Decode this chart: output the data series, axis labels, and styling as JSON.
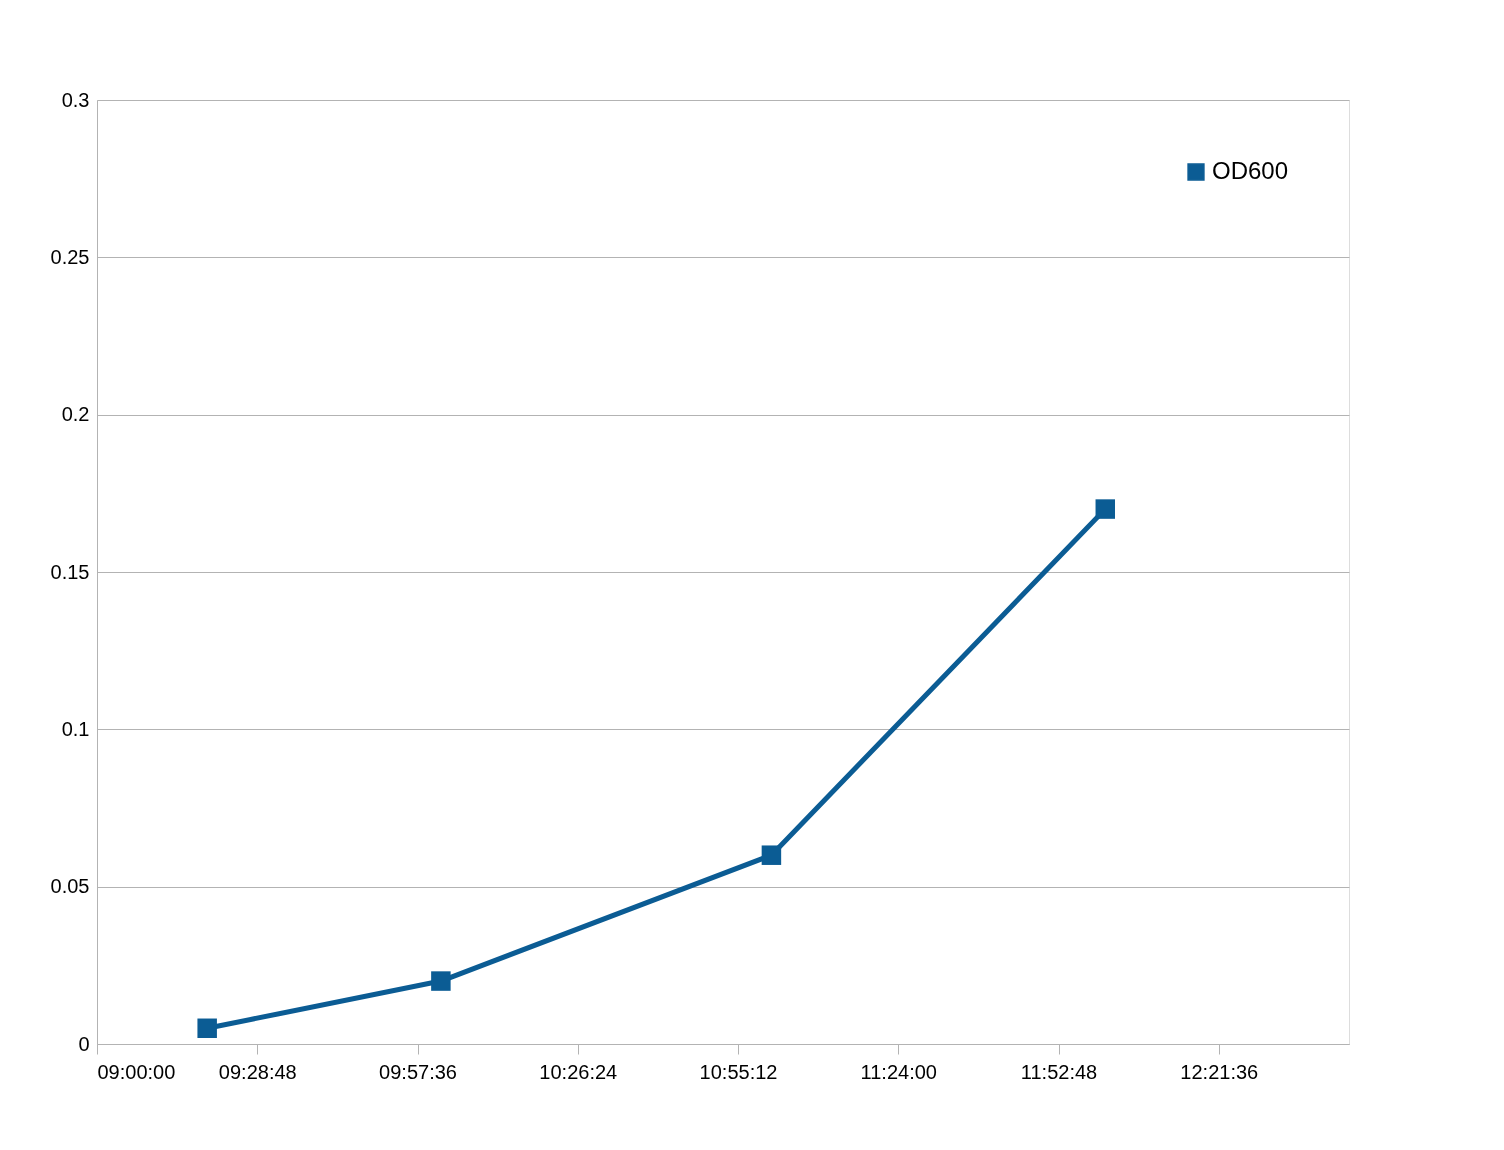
{
  "chart_data": {
    "type": "line",
    "x": [
      9.33,
      10.03,
      11.02,
      12.02
    ],
    "series": [
      {
        "name": "OD600",
        "color": "#0b5c94",
        "values": [
          0.005,
          0.02,
          0.06,
          0.17
        ]
      }
    ],
    "xlim": [
      9.0,
      12.75
    ],
    "xticks": [
      {
        "value": 9.0,
        "label": "09:00:00"
      },
      {
        "value": 9.48,
        "label": "09:28:48"
      },
      {
        "value": 9.96,
        "label": "09:57:36"
      },
      {
        "value": 10.44,
        "label": "10:26:24"
      },
      {
        "value": 10.92,
        "label": "10:55:12"
      },
      {
        "value": 11.4,
        "label": "11:24:00"
      },
      {
        "value": 11.88,
        "label": "11:52:48"
      },
      {
        "value": 12.36,
        "label": "12:21:36"
      }
    ],
    "ylim": [
      0,
      0.3
    ],
    "yticks": [
      0,
      0.05,
      0.1,
      0.15,
      0.2,
      0.25,
      0.3
    ],
    "grid": "y",
    "legend": "top right",
    "marker": "square",
    "line_style": "solid"
  }
}
